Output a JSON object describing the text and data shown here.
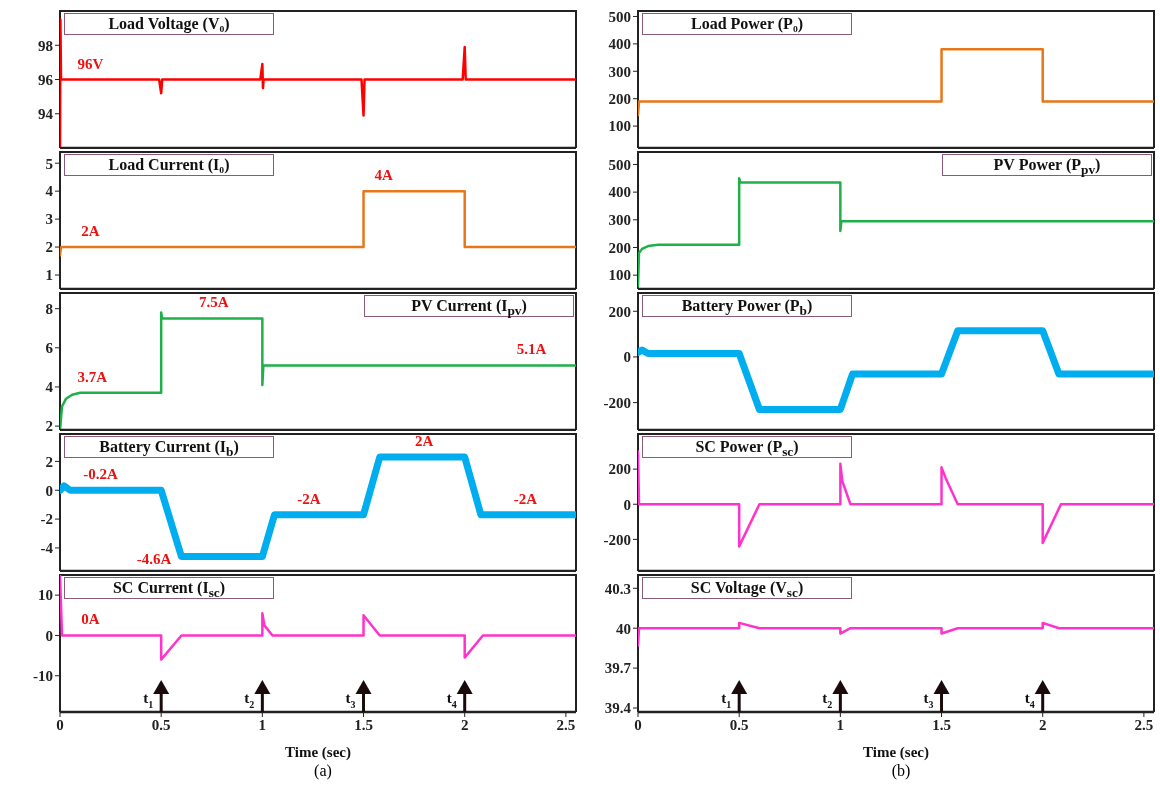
{
  "chart_data": [
    {
      "type": "line",
      "title": "Load Voltage (V₀)",
      "x": [
        0,
        0.002,
        0.005,
        0.15,
        0.49,
        0.5,
        0.505,
        0.51,
        0.99,
        1.0,
        1.003,
        1.006,
        1.01,
        1.49,
        1.5,
        1.505,
        1.51,
        1.99,
        2.0,
        2.005,
        2.01,
        2.55
      ],
      "values": [
        92,
        99.5,
        96,
        96,
        96,
        95.2,
        96,
        96,
        96,
        96.9,
        95.5,
        96,
        96,
        96,
        93.9,
        96,
        96,
        96,
        97.9,
        96,
        96,
        96
      ],
      "color": "#ff0000",
      "xlim": [
        0,
        2.55
      ],
      "xticks": [
        0,
        0.5,
        1,
        1.5,
        2,
        2.5
      ],
      "ylim": [
        92,
        100
      ],
      "yticks": [
        94,
        96,
        98
      ],
      "tick_labels": "y",
      "annotations": [
        {
          "text": "96V",
          "x": 0.15,
          "y": 96
        }
      ]
    },
    {
      "type": "line",
      "title": "Load Current (I₀)",
      "x": [
        0,
        0.005,
        0.15,
        1.5,
        1.5,
        1.6,
        2,
        2,
        2.55
      ],
      "values": [
        1.7,
        2,
        2,
        2,
        4,
        4,
        4,
        2,
        2
      ],
      "color": "#e8771a",
      "xlim": [
        0,
        2.55
      ],
      "xticks": [
        0,
        0.5,
        1,
        1.5,
        2,
        2.5
      ],
      "ylim": [
        0.5,
        5.4
      ],
      "yticks": [
        1,
        2,
        3,
        4,
        5
      ],
      "tick_labels": "y",
      "annotations": [
        {
          "text": "2A",
          "x": 0.15,
          "y": 2
        },
        {
          "text": "4A",
          "x": 1.6,
          "y": 4
        }
      ]
    },
    {
      "type": "line",
      "title": "PV Current (I$_{pv}$)",
      "x": [
        0,
        0.01,
        0.03,
        0.06,
        0.1,
        0.16,
        0.5,
        0.5,
        0.505,
        0.52,
        0.76,
        1.0,
        1.0,
        1.005,
        1.01,
        2.33,
        2.55
      ],
      "values": [
        1.8,
        3.0,
        3.4,
        3.6,
        3.7,
        3.7,
        3.7,
        7.8,
        7.5,
        7.5,
        7.5,
        7.5,
        4.1,
        5.1,
        5.1,
        5.1,
        5.1
      ],
      "color": "#1fb04a",
      "xlim": [
        0,
        2.55
      ],
      "xticks": [
        0,
        0.5,
        1,
        1.5,
        2,
        2.5
      ],
      "ylim": [
        1.8,
        8.8
      ],
      "yticks": [
        2,
        4,
        6,
        8
      ],
      "tick_labels": "y",
      "annotations": [
        {
          "text": "3.7A",
          "x": 0.16,
          "y": 3.7
        },
        {
          "text": "7.5A",
          "x": 0.76,
          "y": 7.5
        },
        {
          "text": "5.1A",
          "x": 2.33,
          "y": 5.1
        }
      ]
    },
    {
      "type": "line",
      "title": "Battery Current (I$_{b}$)",
      "x": [
        0,
        0.02,
        0.05,
        0.2,
        0.5,
        0.6,
        1.0,
        1.06,
        1.23,
        1.5,
        1.58,
        1.8,
        2.0,
        2.08,
        2.3,
        2.55
      ],
      "values": [
        0,
        0.3,
        0,
        0,
        0,
        -4.6,
        -4.6,
        -1.7,
        -1.7,
        -1.7,
        2.3,
        2.3,
        2.3,
        -1.7,
        -1.7,
        -1.7
      ],
      "color": "#00aeef",
      "xlim": [
        0,
        2.55
      ],
      "xticks": [
        0,
        0.5,
        1,
        1.5,
        2,
        2.5
      ],
      "ylim": [
        -5.6,
        3.9
      ],
      "yticks": [
        -4,
        -2,
        0,
        2
      ],
      "tick_labels": "y",
      "annotations": [
        {
          "text": "-0.2A",
          "x": 0.2,
          "y": 0
        },
        {
          "text": "-4.6A",
          "x": 0.6,
          "y": -4.6
        },
        {
          "text": "-2A",
          "x": 1.23,
          "y": -1.7
        },
        {
          "text": "2A",
          "x": 1.8,
          "y": 2.3
        },
        {
          "text": "-2A",
          "x": 2.3,
          "y": -1.7
        }
      ]
    },
    {
      "type": "line",
      "title": "SC Current (I$_{sc}$)",
      "xlabel": "Time (sec)",
      "x": [
        0,
        0.01,
        0.15,
        0.5,
        0.5,
        0.6,
        1.0,
        1.0,
        1.01,
        1.05,
        1.5,
        1.5,
        1.58,
        2.0,
        2.0,
        2.09,
        2.55
      ],
      "values": [
        15,
        0,
        0,
        0,
        -6,
        0,
        0,
        5.5,
        2.5,
        0,
        0,
        5,
        0,
        0,
        -5.5,
        0,
        0
      ],
      "color": "#ff33cc",
      "xlim": [
        0,
        2.55
      ],
      "xticks": [
        0,
        0.5,
        1,
        1.5,
        2,
        2.5
      ],
      "ylim": [
        -19,
        15
      ],
      "yticks": [
        -10,
        0,
        10
      ],
      "annotations": [
        {
          "text": "0A",
          "x": 0.15,
          "y": 0
        },
        "(a)"
      ],
      "ref_lines": [
        {
          "axis": "x",
          "value": 0.5,
          "label": "t$_{1}$"
        },
        {
          "axis": "x",
          "value": 1,
          "label": "t$_{2}$"
        },
        {
          "axis": "x",
          "value": 1.5,
          "label": "t$_{3}$"
        },
        {
          "axis": "x",
          "value": 2,
          "label": "t$_{4}$"
        }
      ]
    },
    {
      "type": "line",
      "title": "Load Power (P₀)",
      "x": [
        0,
        0.005,
        1.5,
        1.5,
        2,
        2,
        2.55
      ],
      "values": [
        140,
        190,
        190,
        380,
        380,
        190,
        190
      ],
      "color": "#e8771a",
      "xlim": [
        0,
        2.55
      ],
      "xticks": [
        0,
        0.5,
        1,
        1.5,
        2,
        2.5
      ],
      "ylim": [
        20,
        520
      ],
      "yticks": [
        100,
        200,
        300,
        400,
        500
      ],
      "tick_labels": "y"
    },
    {
      "type": "line",
      "title": "PV Power (P$_{pv}$)",
      "x": [
        0,
        0.005,
        0.02,
        0.05,
        0.1,
        0.5,
        0.5,
        0.505,
        1.0,
        1.0,
        1.005,
        2.55
      ],
      "values": [
        60,
        180,
        195,
        205,
        210,
        210,
        450,
        435,
        435,
        260,
        295,
        295
      ],
      "color": "#1fb04a",
      "xlim": [
        0,
        2.55
      ],
      "xticks": [
        0,
        0.5,
        1,
        1.5,
        2,
        2.5
      ],
      "ylim": [
        50,
        545
      ],
      "yticks": [
        100,
        200,
        300,
        400,
        500
      ],
      "tick_labels": "y"
    },
    {
      "type": "line",
      "title": "Battery Power (P$_{b}$)",
      "x": [
        0,
        0.02,
        0.05,
        0.5,
        0.6,
        1.0,
        1.06,
        1.5,
        1.58,
        2.0,
        2.08,
        2.55
      ],
      "values": [
        20,
        30,
        15,
        15,
        -230,
        -230,
        -75,
        -75,
        115,
        115,
        -75,
        -75
      ],
      "color": "#00aeef",
      "xlim": [
        0,
        2.55
      ],
      "xticks": [
        0,
        0.5,
        1,
        1.5,
        2,
        2.5
      ],
      "ylim": [
        -320,
        280
      ],
      "yticks": [
        -200,
        0,
        200
      ],
      "tick_labels": "y"
    },
    {
      "type": "line",
      "title": "SC Power (P$_{sc}$)",
      "x": [
        0,
        0.005,
        0.5,
        0.5,
        0.6,
        1.0,
        1.0,
        1.01,
        1.05,
        1.5,
        1.5,
        1.52,
        1.58,
        2.0,
        2.0,
        2.09,
        2.55
      ],
      "values": [
        300,
        0,
        0,
        -240,
        0,
        0,
        230,
        130,
        0,
        0,
        210,
        150,
        0,
        0,
        -220,
        0,
        0
      ],
      "color": "#ff33cc",
      "xlim": [
        0,
        2.55
      ],
      "xticks": [
        0,
        0.5,
        1,
        1.5,
        2,
        2.5
      ],
      "ylim": [
        -380,
        400
      ],
      "yticks": [
        -200,
        0,
        200
      ],
      "tick_labels": "y"
    },
    {
      "type": "line",
      "title": "SC Voltage (V$_{sc}$)",
      "xlabel": "Time (sec)",
      "x": [
        0,
        0.005,
        0.5,
        0.5,
        0.6,
        1.0,
        1.0,
        1.05,
        1.5,
        1.5,
        1.58,
        2.0,
        2.0,
        2.08,
        2.55
      ],
      "values": [
        39.87,
        40,
        40,
        40.04,
        40,
        40,
        39.96,
        40,
        40,
        39.96,
        40,
        40,
        40.04,
        40,
        40
      ],
      "color": "#ff33cc",
      "xlim": [
        0,
        2.55
      ],
      "xticks": [
        0,
        0.5,
        1,
        1.5,
        2,
        2.5
      ],
      "ylim": [
        39.37,
        40.4
      ],
      "yticks": [
        39.4,
        39.7,
        40,
        40.3
      ],
      "annotations": [
        "(b)"
      ],
      "ref_lines": [
        {
          "axis": "x",
          "value": 0.5,
          "label": "t$_{1}$"
        },
        {
          "axis": "x",
          "value": 1,
          "label": "t$_{2}$"
        },
        {
          "axis": "x",
          "value": 1.5,
          "label": "t$_{3}$"
        },
        {
          "axis": "x",
          "value": 2,
          "label": "t$_{4}$"
        }
      ]
    }
  ]
}
